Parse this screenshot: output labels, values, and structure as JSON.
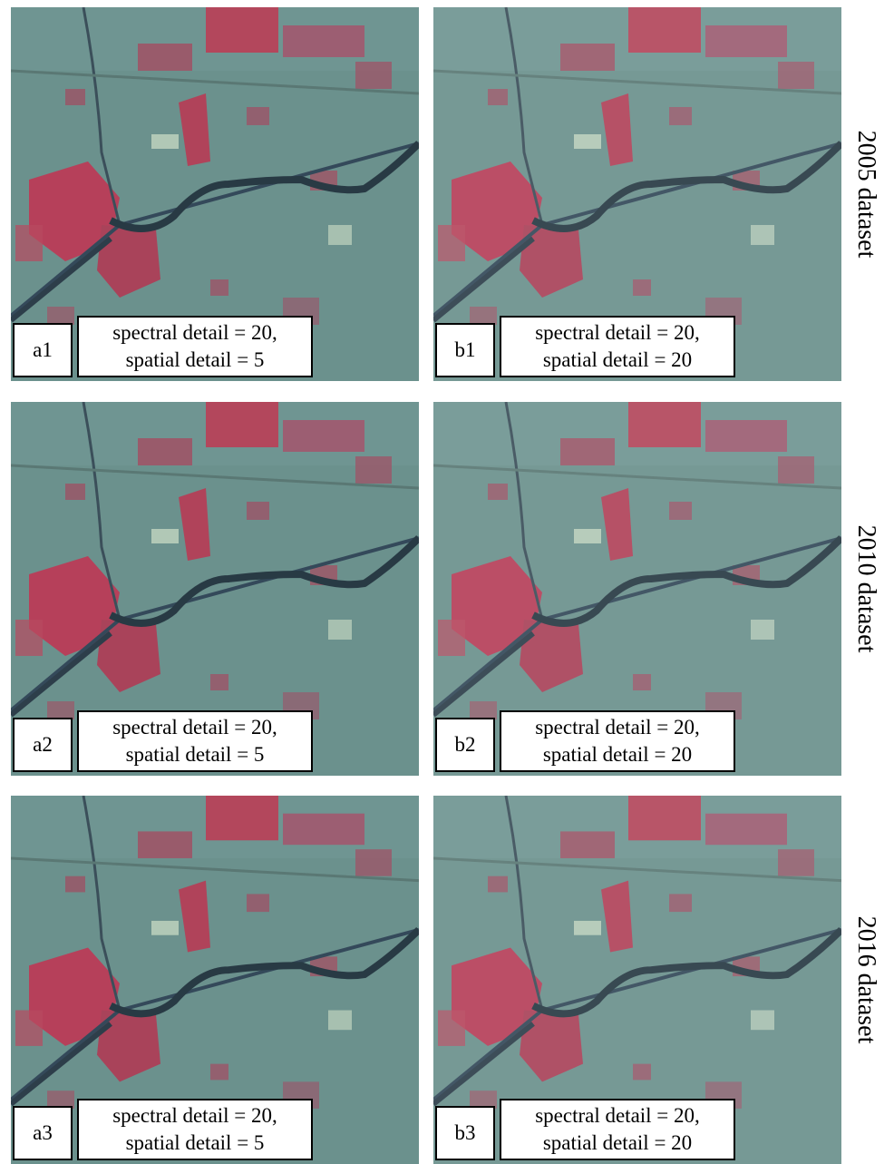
{
  "rows": [
    {
      "label": "2005 dataset",
      "panels": [
        {
          "id": "a1",
          "caption": [
            "spectral detail = 20,",
            "spatial detail = 5"
          ]
        },
        {
          "id": "b1",
          "caption": [
            "spectral detail = 20,",
            "spatial detail = 20"
          ]
        }
      ]
    },
    {
      "label": "2010 dataset",
      "panels": [
        {
          "id": "a2",
          "caption": [
            "spectral detail = 20,",
            "spatial detail = 5"
          ]
        },
        {
          "id": "b2",
          "caption": [
            "spectral detail = 20,",
            "spatial detail = 20"
          ]
        }
      ]
    },
    {
      "label": "2016 dataset",
      "panels": [
        {
          "id": "a3",
          "caption": [
            "spectral detail = 20,",
            "spatial detail = 5"
          ]
        },
        {
          "id": "b3",
          "caption": [
            "spectral detail = 20,",
            "spatial detail = 20"
          ]
        }
      ]
    }
  ]
}
